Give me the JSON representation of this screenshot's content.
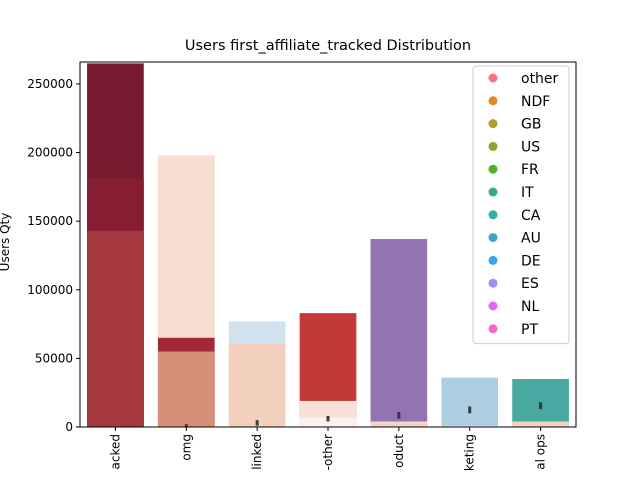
{
  "chart_data": {
    "type": "bar",
    "title": "Users first_affiliate_tracked Distribution",
    "xlabel": "",
    "ylabel": "Users Qty",
    "ylim": [
      0,
      266000
    ],
    "yticks": [
      0,
      50000,
      100000,
      150000,
      200000,
      250000
    ],
    "ytick_labels": [
      "0",
      "50000",
      "100000",
      "150000",
      "200000",
      "250000"
    ],
    "categories": [
      "untracked",
      "omg",
      "linked",
      "tracked-other",
      "product",
      "marketing",
      "local ops"
    ],
    "category_labels_visible": [
      "acked",
      "omg",
      "linked",
      "-other",
      "oduct",
      "keting",
      "al ops"
    ],
    "legend_placement": "top-right",
    "layers": [
      {
        "values": [
          265000,
          198000,
          77000,
          83000,
          137000,
          36000,
          35000
        ],
        "colors": [
          "#781a2f",
          "#f6ddd0",
          "#d2e2ee",
          "#c3393a",
          "#9274b3",
          "#adcde0",
          "#47a9a0"
        ]
      },
      {
        "values": [
          181000,
          65000,
          61000,
          19000,
          4000,
          1000,
          4000
        ],
        "colors": [
          "#861d32",
          "#a3283a",
          "#f3d0be",
          "#f6e2d9",
          "#f7d9c9",
          "#d7e7f0",
          "#f5d3bf"
        ]
      },
      {
        "values": [
          143000,
          55000,
          null,
          7000,
          2500,
          null,
          null
        ],
        "colors": [
          "#a6393e",
          "#d88f7a",
          null,
          "#fbf0ea",
          "#f3d4c4",
          null,
          null
        ]
      }
    ],
    "error_bars": [
      {
        "category": "omg",
        "low": 0,
        "high": 2000
      },
      {
        "category": "linked",
        "low": 1000,
        "high": 5000
      },
      {
        "category": "tracked-other",
        "low": 4000,
        "high": 8000
      },
      {
        "category": "product",
        "low": 6000,
        "high": 11000
      },
      {
        "category": "marketing",
        "low": 10000,
        "high": 15000
      },
      {
        "category": "local ops",
        "low": 13000,
        "high": 18000
      }
    ],
    "legend": [
      {
        "label": "other",
        "color": "#f77189"
      },
      {
        "label": "NDF",
        "color": "#e5862f"
      },
      {
        "label": "GB",
        "color": "#b39b2e"
      },
      {
        "label": "US",
        "color": "#8ea432"
      },
      {
        "label": "FR",
        "color": "#50b131"
      },
      {
        "label": "IT",
        "color": "#35ac84"
      },
      {
        "label": "CA",
        "color": "#36ada4"
      },
      {
        "label": "AU",
        "color": "#38a9c5"
      },
      {
        "label": "DE",
        "color": "#3ba3ec"
      },
      {
        "label": "ES",
        "color": "#a48cf4"
      },
      {
        "label": "NL",
        "color": "#e866f4"
      },
      {
        "label": "PT",
        "color": "#f668c2"
      }
    ]
  }
}
